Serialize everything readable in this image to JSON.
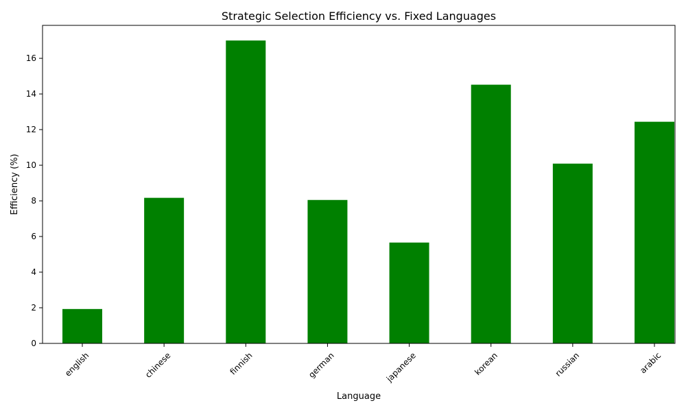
{
  "chart_data": {
    "type": "bar",
    "title": "Strategic Selection Efficiency vs. Fixed Languages",
    "xlabel": "Language",
    "ylabel": "Efficiency (%)",
    "categories": [
      "english",
      "chinese",
      "finnish",
      "german",
      "japanese",
      "korean",
      "russian",
      "arabic"
    ],
    "values": [
      1.93,
      8.17,
      17.0,
      8.05,
      5.66,
      14.52,
      10.09,
      12.44
    ],
    "ylim": [
      0,
      17.85
    ],
    "yticks": [
      0,
      2,
      4,
      6,
      8,
      10,
      12,
      14,
      16
    ],
    "ytick_labels": [
      "0",
      "2",
      "4",
      "6",
      "8",
      "10",
      "12",
      "14",
      "16"
    ],
    "bar_color": "#008000",
    "grid": false,
    "legend": "none"
  }
}
